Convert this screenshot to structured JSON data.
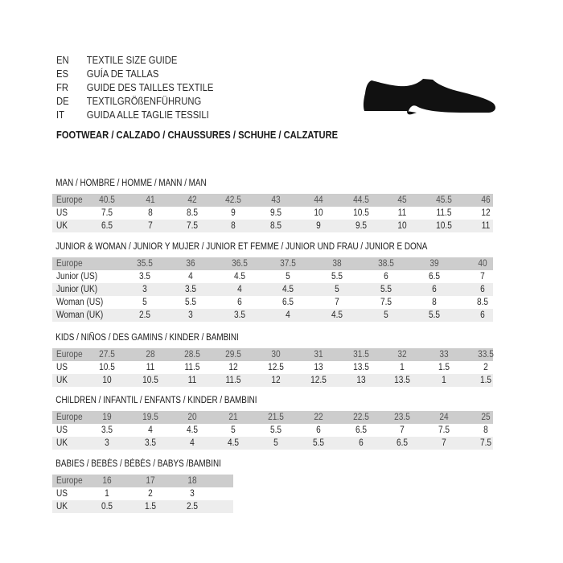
{
  "languages": [
    {
      "code": "EN",
      "title": "TEXTILE SIZE GUIDE"
    },
    {
      "code": "ES",
      "title": "GUÍA DE TALLAS"
    },
    {
      "code": "FR",
      "title": "GUIDE DES TAILLES TEXTILE"
    },
    {
      "code": "DE",
      "title": "TEXTILGRÖßENFÜHRUNG"
    },
    {
      "code": "IT",
      "title": "GUIDA ALLE TAGLIE TESSILI"
    }
  ],
  "footwear_heading": "FOOTWEAR / CALZADO / CHAUSSURES / SCHUHE / CALZATURE",
  "icon": "shoe-silhouette-icon",
  "colors": {
    "header_row": "#cdcdcd",
    "alt_row": "#ededed"
  },
  "tables": [
    {
      "title": "MAN / HOMBRE / HOMME / MANN / MAN",
      "rows": [
        {
          "label": "Europe",
          "values": [
            "40.5",
            "41",
            "42",
            "42.5",
            "43",
            "44",
            "44.5",
            "45",
            "45.5",
            "46"
          ]
        },
        {
          "label": "US",
          "values": [
            "7.5",
            "8",
            "8.5",
            "9",
            "9.5",
            "10",
            "10.5",
            "11",
            "11.5",
            "12"
          ]
        },
        {
          "label": "UK",
          "values": [
            "6.5",
            "7",
            "7.5",
            "8",
            "8.5",
            "9",
            "9.5",
            "10",
            "10.5",
            "11"
          ]
        }
      ]
    },
    {
      "title": "JUNIOR & WOMAN / JUNIOR Y MUJER / JUNIOR ET FEMME / JUNIOR UND FRAU / JUNIOR E DONA",
      "rows": [
        {
          "label": "Europe",
          "values": [
            "35.5",
            "36",
            "36.5",
            "37.5",
            "38",
            "38.5",
            "39",
            "40"
          ]
        },
        {
          "label": "Junior (US)",
          "values": [
            "3.5",
            "4",
            "4.5",
            "5",
            "5.5",
            "6",
            "6.5",
            "7"
          ]
        },
        {
          "label": "Junior (UK)",
          "values": [
            "3",
            "3.5",
            "4",
            "4.5",
            "5",
            "5.5",
            "6",
            "6"
          ]
        },
        {
          "label": "Woman (US)",
          "values": [
            "5",
            "5.5",
            "6",
            "6.5",
            "7",
            "7.5",
            "8",
            "8.5"
          ]
        },
        {
          "label": "Woman (UK)",
          "values": [
            "2.5",
            "3",
            "3.5",
            "4",
            "4.5",
            "5",
            "5.5",
            "6"
          ]
        }
      ]
    },
    {
      "title": "KIDS / NIÑOS / DES GAMINS / KINDER / BAMBINI",
      "rows": [
        {
          "label": "Europe",
          "values": [
            "27.5",
            "28",
            "28.5",
            "29.5",
            "30",
            "31",
            "31.5",
            "32",
            "33",
            "33.5"
          ]
        },
        {
          "label": "US",
          "values": [
            "10.5",
            "11",
            "11.5",
            "12",
            "12.5",
            "13",
            "13.5",
            "1",
            "1.5",
            "2"
          ]
        },
        {
          "label": "UK",
          "values": [
            "10",
            "10.5",
            "11",
            "11.5",
            "12",
            "12.5",
            "13",
            "13.5",
            "1",
            "1.5"
          ]
        }
      ]
    },
    {
      "title": "CHILDREN / INFANTIL / ENFANTS / KINDER / BAMBINI",
      "rows": [
        {
          "label": "Europe",
          "values": [
            "19",
            "19.5",
            "20",
            "21",
            "21.5",
            "22",
            "22.5",
            "23.5",
            "24",
            "25"
          ]
        },
        {
          "label": "US",
          "values": [
            "3.5",
            "4",
            "4.5",
            "5",
            "5.5",
            "6",
            "6.5",
            "7",
            "7.5",
            "8"
          ]
        },
        {
          "label": "UK",
          "values": [
            "3",
            "3.5",
            "4",
            "4.5",
            "5",
            "5.5",
            "6",
            "6.5",
            "7",
            "7.5"
          ]
        }
      ]
    },
    {
      "title": "BABIES  / BEBÉS / BÉBÉS / BABYS /BAMBINI",
      "rows": [
        {
          "label": "Europe",
          "values": [
            "16",
            "17",
            "18"
          ]
        },
        {
          "label": "US",
          "values": [
            "1",
            "2",
            "3"
          ]
        },
        {
          "label": "UK",
          "values": [
            "0.5",
            "1.5",
            "2.5"
          ]
        }
      ]
    }
  ]
}
